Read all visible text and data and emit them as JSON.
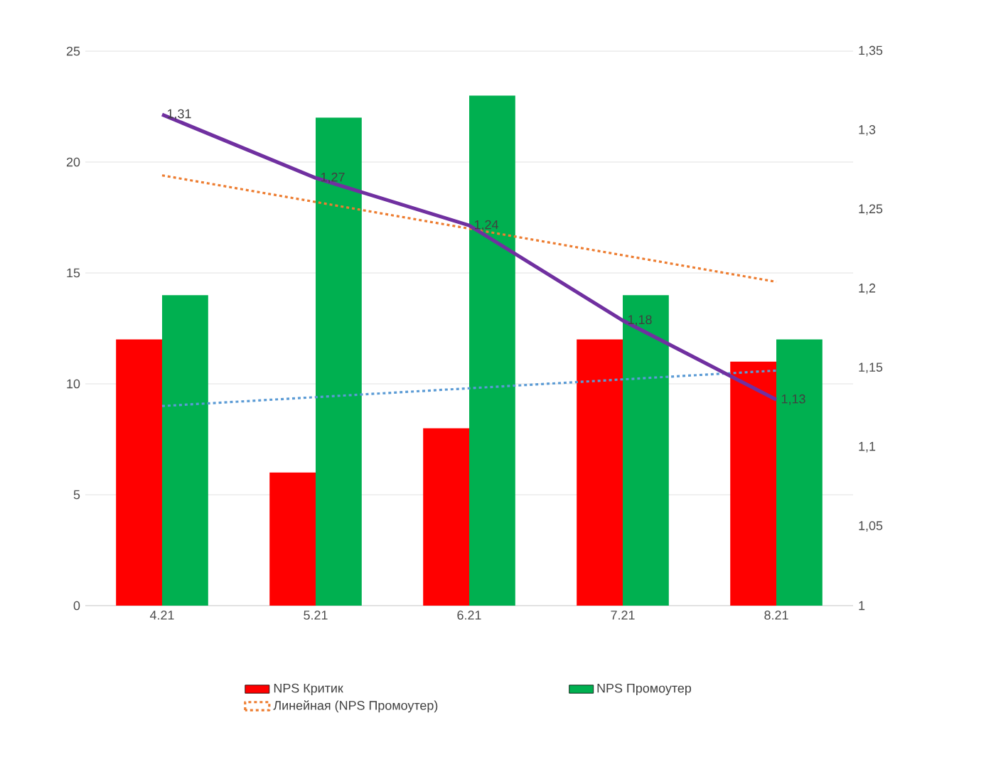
{
  "chart_data": {
    "type": "bar",
    "categories": [
      "4.21",
      "5.21",
      "6.21",
      "7.21",
      "8.21"
    ],
    "series": [
      {
        "name": "NPS Критик",
        "color": "#ff0000",
        "values": [
          12,
          6,
          8,
          12,
          11
        ]
      },
      {
        "name": "NPS Промоутер",
        "color": "#00b050",
        "values": [
          14,
          22,
          23,
          14,
          12
        ]
      },
      {
        "name": "Линейная (NPS Промоутер)",
        "type": "line",
        "color": "#ed7d31",
        "line_style": "dotted",
        "values": [
          19.4,
          18.2,
          17,
          15.8,
          14.6
        ]
      },
      {
        "type": "line",
        "color": "#5b9bd5",
        "line_style": "dotted",
        "values": [
          9,
          9.4,
          9.8,
          10.2,
          10.6
        ]
      },
      {
        "type": "line",
        "color": "#7030a0",
        "axis": "y2",
        "line_style": "solid",
        "values": [
          1.31,
          1.27,
          1.24,
          1.18,
          1.13
        ],
        "value_labels": [
          "1,31",
          "1,27",
          "1,24",
          "1,18",
          "1,13"
        ]
      }
    ],
    "ylim": [
      0,
      25
    ],
    "yticks": [
      0,
      5,
      10,
      15,
      20,
      25
    ],
    "y2lim": [
      1,
      1.35
    ],
    "y2ticks": [
      {
        "value": 1,
        "label": "1"
      },
      {
        "value": 1.05,
        "label": "1,05"
      },
      {
        "value": 1.1,
        "label": "1,1"
      },
      {
        "value": 1.15,
        "label": "1,15"
      },
      {
        "value": 1.2,
        "label": "1,2"
      },
      {
        "value": 1.25,
        "label": "1,25"
      },
      {
        "value": 1.3,
        "label": "1,3"
      },
      {
        "value": 1.35,
        "label": "1,35"
      }
    ],
    "grid": "y",
    "legend": "bottom",
    "marker": "none"
  }
}
